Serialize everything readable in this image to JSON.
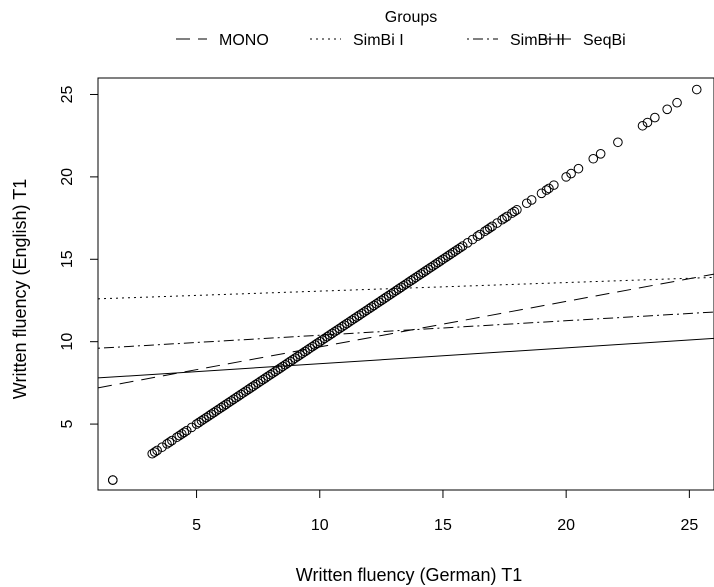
{
  "chart_data": {
    "type": "scatter",
    "xlabel": "Written fluency (German) T1",
    "ylabel": "Written fluency (English) T1",
    "xlim": [
      1.0,
      26.0
    ],
    "ylim": [
      1.0,
      26.0
    ],
    "xticks": [
      "5",
      "10",
      "15",
      "20",
      "25"
    ],
    "yticks": [
      "5",
      "10",
      "15",
      "20",
      "25"
    ],
    "legend": {
      "title": "Groups",
      "position": "top",
      "entries": [
        {
          "name": "MONO",
          "style": "dashed"
        },
        {
          "name": "SimBi I",
          "style": "dotted"
        },
        {
          "name": "SimBi II",
          "style": "dashdot"
        },
        {
          "name": "SeqBi",
          "style": "solid"
        }
      ]
    },
    "lines": [
      {
        "name": "MONO",
        "style": "dashed",
        "x": [
          1.0,
          26.0
        ],
        "y": [
          7.2,
          14.1
        ]
      },
      {
        "name": "SimBi I",
        "style": "dotted",
        "x": [
          1.0,
          26.0
        ],
        "y": [
          12.6,
          13.9
        ]
      },
      {
        "name": "SimBi II",
        "style": "dashdot",
        "x": [
          1.0,
          26.0
        ],
        "y": [
          9.6,
          11.8
        ]
      },
      {
        "name": "SeqBi",
        "style": "solid",
        "x": [
          1.0,
          26.0
        ],
        "y": [
          7.8,
          10.2
        ]
      }
    ],
    "points_x": [
      1.6,
      1.6,
      3.2,
      3.3,
      3.4,
      3.6,
      3.8,
      3.9,
      4.0,
      4.2,
      4.3,
      4.4,
      4.5,
      4.6,
      4.8,
      5.0,
      5.1,
      5.2,
      5.3,
      5.4,
      5.5,
      5.6,
      5.7,
      5.8,
      5.9,
      6.0,
      6.1,
      6.2,
      6.3,
      6.4,
      6.5,
      6.6,
      6.7,
      6.8,
      6.9,
      7.0,
      7.1,
      7.2,
      7.3,
      7.4,
      7.5,
      7.6,
      7.7,
      7.8,
      7.9,
      8.0,
      8.1,
      8.2,
      8.3,
      8.4,
      8.5,
      8.6,
      8.7,
      8.8,
      8.9,
      9.0,
      9.1,
      9.2,
      9.3,
      9.4,
      9.5,
      9.6,
      9.7,
      9.8,
      9.9,
      10.0,
      10.1,
      10.2,
      10.3,
      10.4,
      10.5,
      10.6,
      10.7,
      10.8,
      10.9,
      11.0,
      11.1,
      11.2,
      11.3,
      11.4,
      11.5,
      11.6,
      11.7,
      11.8,
      11.9,
      12.0,
      12.1,
      12.2,
      12.3,
      12.4,
      12.5,
      12.6,
      12.7,
      12.8,
      12.9,
      13.0,
      13.1,
      13.2,
      13.3,
      13.4,
      13.5,
      13.6,
      13.7,
      13.8,
      13.9,
      14.0,
      14.1,
      14.2,
      14.3,
      14.4,
      14.5,
      14.6,
      14.7,
      14.8,
      14.9,
      15.0,
      15.1,
      15.2,
      15.3,
      15.4,
      15.5,
      15.6,
      15.7,
      15.8,
      16.0,
      16.2,
      16.4,
      16.5,
      16.7,
      16.8,
      16.9,
      17.0,
      17.2,
      17.4,
      17.5,
      17.6,
      17.8,
      17.9,
      18.0,
      18.4,
      18.6,
      19.0,
      19.2,
      19.3,
      19.5,
      20.0,
      20.2,
      20.5,
      21.1,
      21.4,
      22.1,
      23.1,
      23.3,
      23.6,
      24.1,
      24.5,
      25.3
    ],
    "points_y": [
      1.6,
      1.6,
      3.2,
      3.3,
      3.4,
      3.6,
      3.8,
      3.9,
      4.0,
      4.2,
      4.3,
      4.4,
      4.5,
      4.6,
      4.8,
      5.0,
      5.1,
      5.2,
      5.3,
      5.4,
      5.5,
      5.6,
      5.7,
      5.8,
      5.9,
      6.0,
      6.1,
      6.2,
      6.3,
      6.4,
      6.5,
      6.6,
      6.7,
      6.8,
      6.9,
      7.0,
      7.1,
      7.2,
      7.3,
      7.4,
      7.5,
      7.6,
      7.7,
      7.8,
      7.9,
      8.0,
      8.1,
      8.2,
      8.3,
      8.4,
      8.5,
      8.6,
      8.7,
      8.8,
      8.9,
      9.0,
      9.1,
      9.2,
      9.3,
      9.4,
      9.5,
      9.6,
      9.7,
      9.8,
      9.9,
      10.0,
      10.1,
      10.2,
      10.3,
      10.4,
      10.5,
      10.6,
      10.7,
      10.8,
      10.9,
      11.0,
      11.1,
      11.2,
      11.3,
      11.4,
      11.5,
      11.6,
      11.7,
      11.8,
      11.9,
      12.0,
      12.1,
      12.2,
      12.3,
      12.4,
      12.5,
      12.6,
      12.7,
      12.8,
      12.9,
      13.0,
      13.1,
      13.2,
      13.3,
      13.4,
      13.5,
      13.6,
      13.7,
      13.8,
      13.9,
      14.0,
      14.1,
      14.2,
      14.3,
      14.4,
      14.5,
      14.6,
      14.7,
      14.8,
      14.9,
      15.0,
      15.1,
      15.2,
      15.3,
      15.4,
      15.5,
      15.6,
      15.7,
      15.8,
      16.0,
      16.2,
      16.4,
      16.5,
      16.7,
      16.8,
      16.9,
      17.0,
      17.2,
      17.4,
      17.5,
      17.6,
      17.8,
      17.9,
      18.0,
      18.4,
      18.6,
      19.0,
      19.2,
      19.3,
      19.5,
      20.0,
      20.2,
      20.5,
      21.1,
      21.4,
      22.1,
      23.1,
      23.3,
      23.6,
      24.1,
      24.5,
      25.3
    ]
  }
}
